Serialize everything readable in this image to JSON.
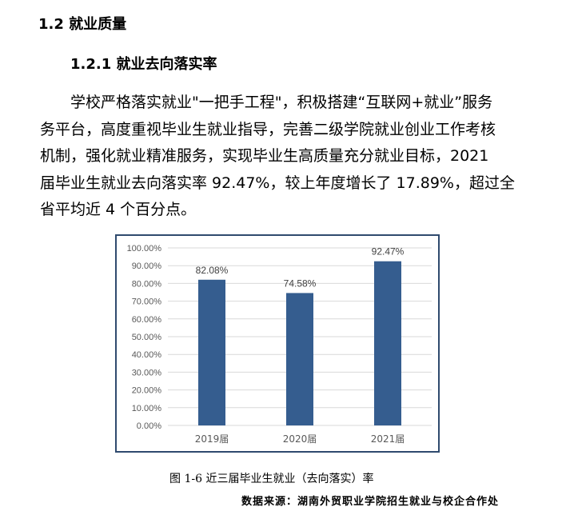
{
  "section_title": "1.2 就业质量",
  "subsection_title": "1.2.1 就业去向落实率",
  "paragraph_lines": [
    "　　学校严格落实就业\"一把手工程\"，积极搭建“互联网+就业”服务",
    "务平台，高度重视毕业生就业指导，完善二级学院就业创业工作考核",
    "机制，强化就业精准服务，实现毕业生高质量充分就业目标，2021",
    "届毕业生就业去向落实率 92.47%，较上年度增长了 17.89%，超过全",
    "省平均近 4 个百分点。"
  ],
  "chart_data": {
    "type": "bar",
    "categories": [
      "2019届",
      "2020届",
      "2021届"
    ],
    "values": [
      82.08,
      74.58,
      92.47
    ],
    "data_labels": [
      "82.08%",
      "74.58%",
      "92.47%"
    ],
    "ylim": [
      0,
      100
    ],
    "yticks": [
      "0.00%",
      "10.00%",
      "20.00%",
      "30.00%",
      "40.00%",
      "50.00%",
      "60.00%",
      "70.00%",
      "80.00%",
      "90.00%",
      "100.00%"
    ],
    "grid": true,
    "bar_color": "#355d8f"
  },
  "caption": "图 1-6 近三届毕业生就业（去向落实）率",
  "source": "数据来源：湖南外贸职业学院招生就业与校企合作处"
}
